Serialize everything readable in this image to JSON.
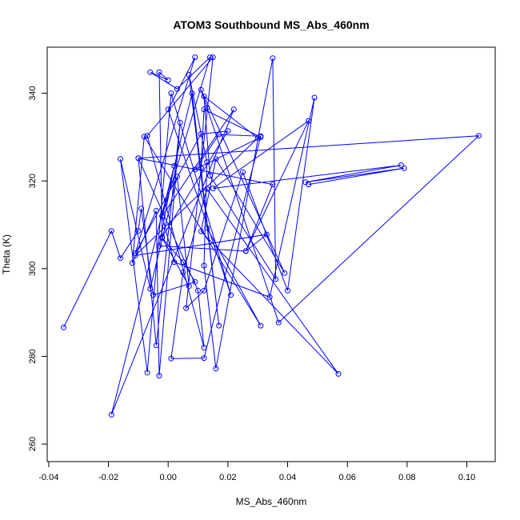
{
  "chart_data": {
    "type": "line",
    "title": "ATOM3 Southbound MS_Abs_460nm",
    "xlabel": "MS_Abs_460nm",
    "ylabel": "Theta (K)",
    "xlim": [
      -0.0405,
      0.1095
    ],
    "ylim": [
      256,
      350.5
    ],
    "xticks": [
      -0.04,
      -0.02,
      0.0,
      0.02,
      0.04,
      0.06,
      0.08,
      0.1
    ],
    "xtick_labels": [
      "-0.04",
      "-0.02",
      "0.00",
      "0.02",
      "0.04",
      "0.06",
      "0.08",
      "0.10"
    ],
    "yticks": [
      260,
      280,
      300,
      320,
      340
    ],
    "ytick_labels": [
      "260",
      "280",
      "300",
      "320",
      "340"
    ],
    "grid": false,
    "marker": "open-circle",
    "series": [
      {
        "color": "#0000ff",
        "points": [
          [
            -0.035,
            286.6
          ],
          [
            -0.019,
            308.6
          ],
          [
            -0.016,
            302.4
          ],
          [
            -0.01,
            308.6
          ],
          [
            -0.009,
            313.7
          ],
          [
            -0.005,
            294.0
          ],
          [
            0.009,
            297.0
          ],
          [
            0.005,
            301.5
          ],
          [
            -0.002,
            307.0
          ],
          [
            0.007,
            296.0
          ],
          [
            0.003,
            321.0
          ],
          [
            -0.006,
            295.4
          ],
          [
            -0.016,
            325.0
          ],
          [
            -0.007,
            276.3
          ],
          [
            0.001,
            340.0
          ],
          [
            0.021,
            294.0
          ],
          [
            0.0,
            336.3
          ],
          [
            0.009,
            348.2
          ],
          [
            -0.011,
            303.5
          ],
          [
            0.011,
            330.7
          ],
          [
            0.02,
            331.4
          ],
          [
            -0.002,
            307.2
          ],
          [
            -0.003,
            344.8
          ],
          [
            0.0,
            343.0
          ],
          [
            -0.006,
            344.8
          ],
          [
            0.003,
            341.0
          ],
          [
            0.014,
            348.2
          ],
          [
            -0.002,
            312.0
          ],
          [
            0.022,
            336.3
          ],
          [
            -0.019,
            266.7
          ],
          [
            0.002,
            323.4
          ],
          [
            -0.003,
            305.2
          ],
          [
            0.026,
            304.0
          ],
          [
            0.033,
            307.8
          ],
          [
            -0.011,
            303.0
          ],
          [
            0.03,
            329.8
          ],
          [
            0.012,
            339.3
          ],
          [
            0.014,
            321.2
          ],
          [
            0.036,
            297.6
          ],
          [
            0.035,
            348.0
          ],
          [
            0.016,
            277.2
          ],
          [
            0.012,
            300.7
          ],
          [
            0.013,
            324.3
          ],
          [
            0.007,
            344.2
          ],
          [
            0.017,
            287.0
          ],
          [
            0.008,
            340.0
          ],
          [
            -0.002,
            312.0
          ],
          [
            0.002,
            301.5
          ],
          [
            0.034,
            293.5
          ],
          [
            0.049,
            339.0
          ],
          [
            0.04,
            295.0
          ],
          [
            0.025,
            322.0
          ],
          [
            0.012,
            295.0
          ],
          [
            0.006,
            291.0
          ],
          [
            0.015,
            348.2
          ],
          [
            -0.007,
            330.3
          ],
          [
            0.012,
            282.0
          ],
          [
            0.01,
            295.0
          ],
          [
            -0.01,
            325.2
          ],
          [
            -0.004,
            282.5
          ],
          [
            0.004,
            333.3
          ],
          [
            -0.003,
            275.6
          ],
          [
            -0.004,
            313.2
          ],
          [
            -0.012,
            301.3
          ],
          [
            -0.008,
            330.1
          ],
          [
            0.031,
            287.0
          ],
          [
            0.013,
            309.3
          ],
          [
            0.011,
            323.0
          ],
          [
            0.012,
            336.3
          ],
          [
            0.031,
            330.0
          ],
          [
            0.009,
            322.6
          ],
          [
            0.017,
            330.6
          ],
          [
            0.031,
            330.2
          ],
          [
            0.012,
            279.6
          ],
          [
            0.001,
            279.5
          ],
          [
            0.005,
            299.1
          ],
          [
            0.013,
            318.2
          ],
          [
            0.057,
            276.0
          ],
          [
            0.011,
            308.5
          ],
          [
            0.016,
            325.0
          ],
          [
            0.039,
            299.0
          ],
          [
            0.011,
            340.8
          ],
          [
            0.013,
            336.7
          ],
          [
            0.037,
            287.7
          ],
          [
            0.104,
            330.3
          ],
          [
            -0.01,
            325.2
          ],
          [
            0.035,
            319.2
          ],
          [
            0.026,
            304.0
          ],
          [
            0.047,
            333.7
          ],
          [
            0.015,
            318.3
          ],
          [
            0.078,
            323.6
          ],
          [
            0.046,
            319.7
          ],
          [
            0.079,
            322.9
          ],
          [
            0.047,
            319.2
          ]
        ]
      }
    ]
  }
}
